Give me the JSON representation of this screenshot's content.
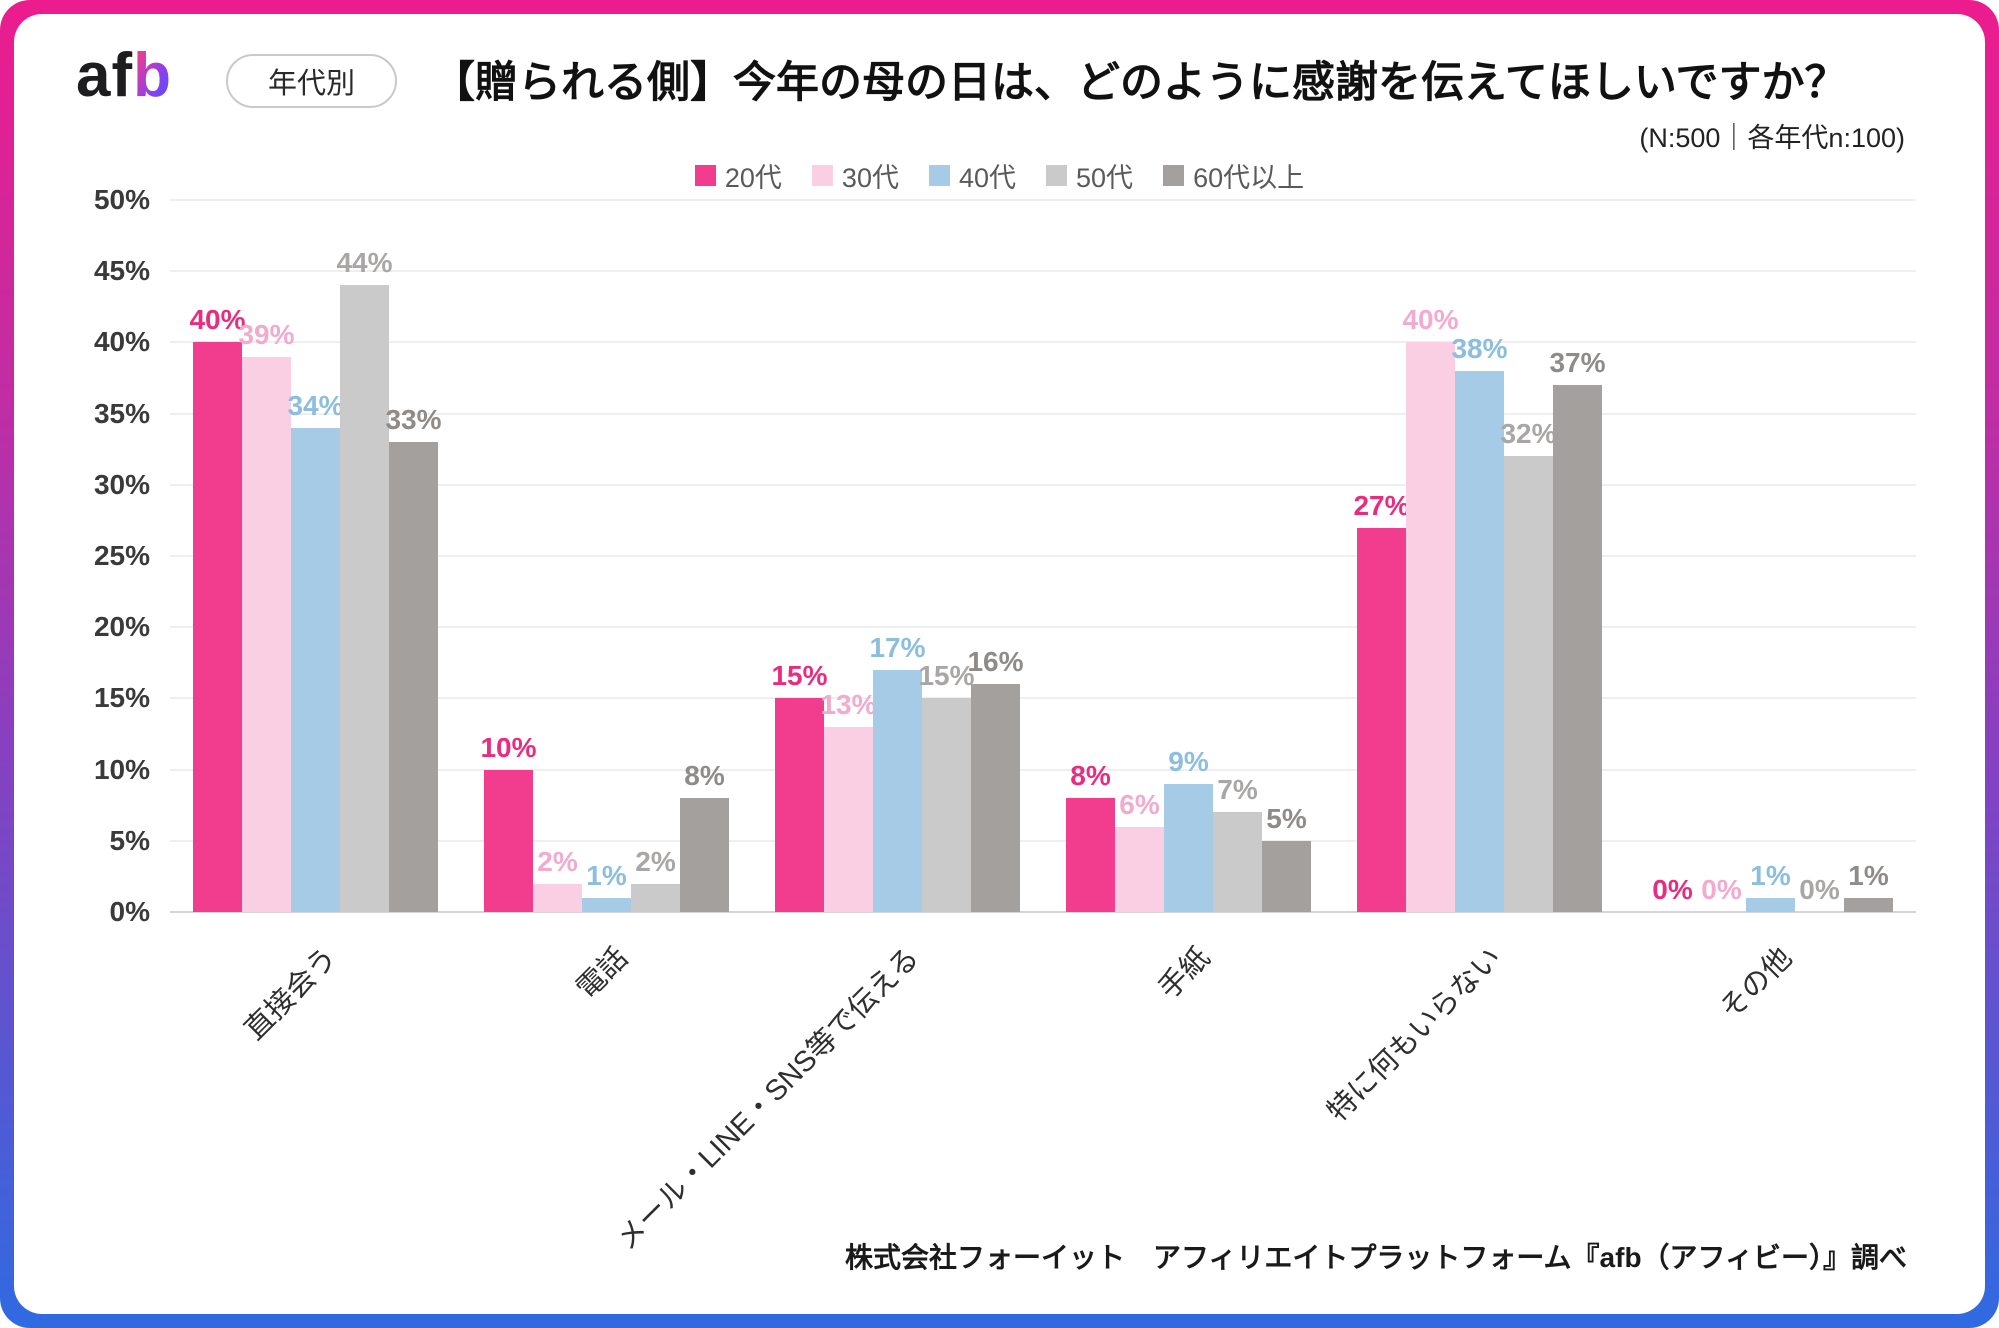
{
  "header": {
    "logo": "afb",
    "badge": "年代別",
    "title": "【贈られる側】今年の母の日は、どのように感謝を伝えてほしいですか？",
    "subtitle": "(N:500｜各年代n:100)"
  },
  "chart_data": {
    "type": "bar",
    "title": "【贈られる側】今年の母の日は、どのように感謝を伝えてほしいですか？",
    "subtitle": "(N:500｜各年代n:100)",
    "categories": [
      "直接会う",
      "電話",
      "メール・LINE・SNS等で伝える",
      "手紙",
      "特に何もいらない",
      "その他"
    ],
    "series": [
      {
        "name": "20代",
        "color": "#F23C8D",
        "label_color": "#E82D81",
        "values": [
          40,
          10,
          15,
          8,
          27,
          0
        ]
      },
      {
        "name": "30代",
        "color": "#FBCFE3",
        "label_color": "#F2AACF",
        "values": [
          39,
          2,
          13,
          6,
          40,
          0
        ]
      },
      {
        "name": "40代",
        "color": "#A6CBE7",
        "label_color": "#8CBEDD",
        "values": [
          34,
          1,
          17,
          9,
          38,
          1
        ]
      },
      {
        "name": "50代",
        "color": "#CBCACA",
        "label_color": "#A9A7A6",
        "values": [
          44,
          2,
          15,
          7,
          32,
          0
        ]
      },
      {
        "name": "60代以上",
        "color": "#A3A09D",
        "label_color": "#8E8B89",
        "values": [
          33,
          8,
          16,
          5,
          37,
          1
        ]
      }
    ],
    "ylim": [
      0,
      50
    ],
    "ytick_step": 5,
    "ytick_suffix": "%",
    "value_suffix": "%",
    "grid": true,
    "legend_position": "top-center"
  },
  "footer": {
    "source": "株式会社フォーイット　アフィリエイトプラットフォーム『afb（アフィビー）』調べ"
  }
}
